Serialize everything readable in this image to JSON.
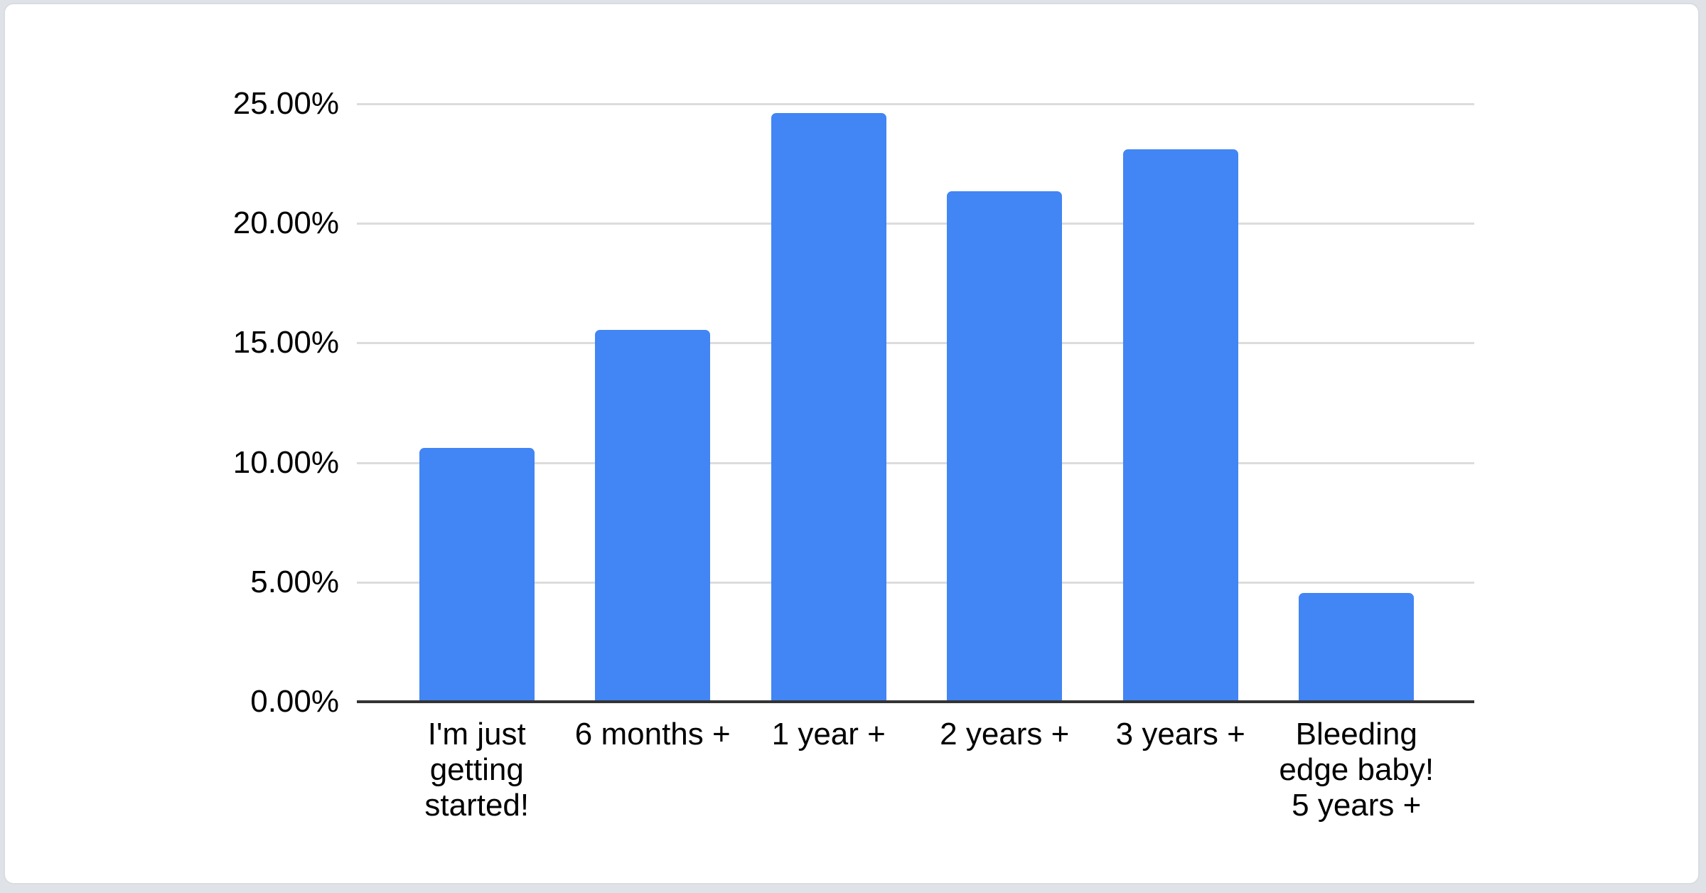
{
  "chart_data": {
    "type": "bar",
    "title": "",
    "xlabel": "",
    "ylabel": "",
    "categories": [
      "I'm just\ngetting\nstarted!",
      "6 months +",
      "1 year +",
      "2 years +",
      "3 years +",
      "Bleeding\nedge baby!\n5 years +"
    ],
    "values": [
      10.6,
      15.55,
      24.6,
      21.35,
      23.1,
      4.55
    ],
    "value_unit": "percent",
    "ylim": [
      0,
      25
    ],
    "y_ticks": [
      {
        "value": 25,
        "label": "25.00%"
      },
      {
        "value": 20,
        "label": "20.00%"
      },
      {
        "value": 15,
        "label": "15.00%"
      },
      {
        "value": 10,
        "label": "10.00%"
      },
      {
        "value": 5,
        "label": "5.00%"
      },
      {
        "value": 0,
        "label": "0.00%"
      }
    ],
    "grid": true,
    "legend": "none",
    "bar_color": "#4285F4"
  },
  "colors": {
    "bar": "#4285F4",
    "gridline": "#dcdcdc",
    "axis_line": "#333333",
    "label_text": "#000000",
    "card_background": "#ffffff",
    "card_border": "#d9dce1",
    "page_background": "#dfe3e8"
  }
}
